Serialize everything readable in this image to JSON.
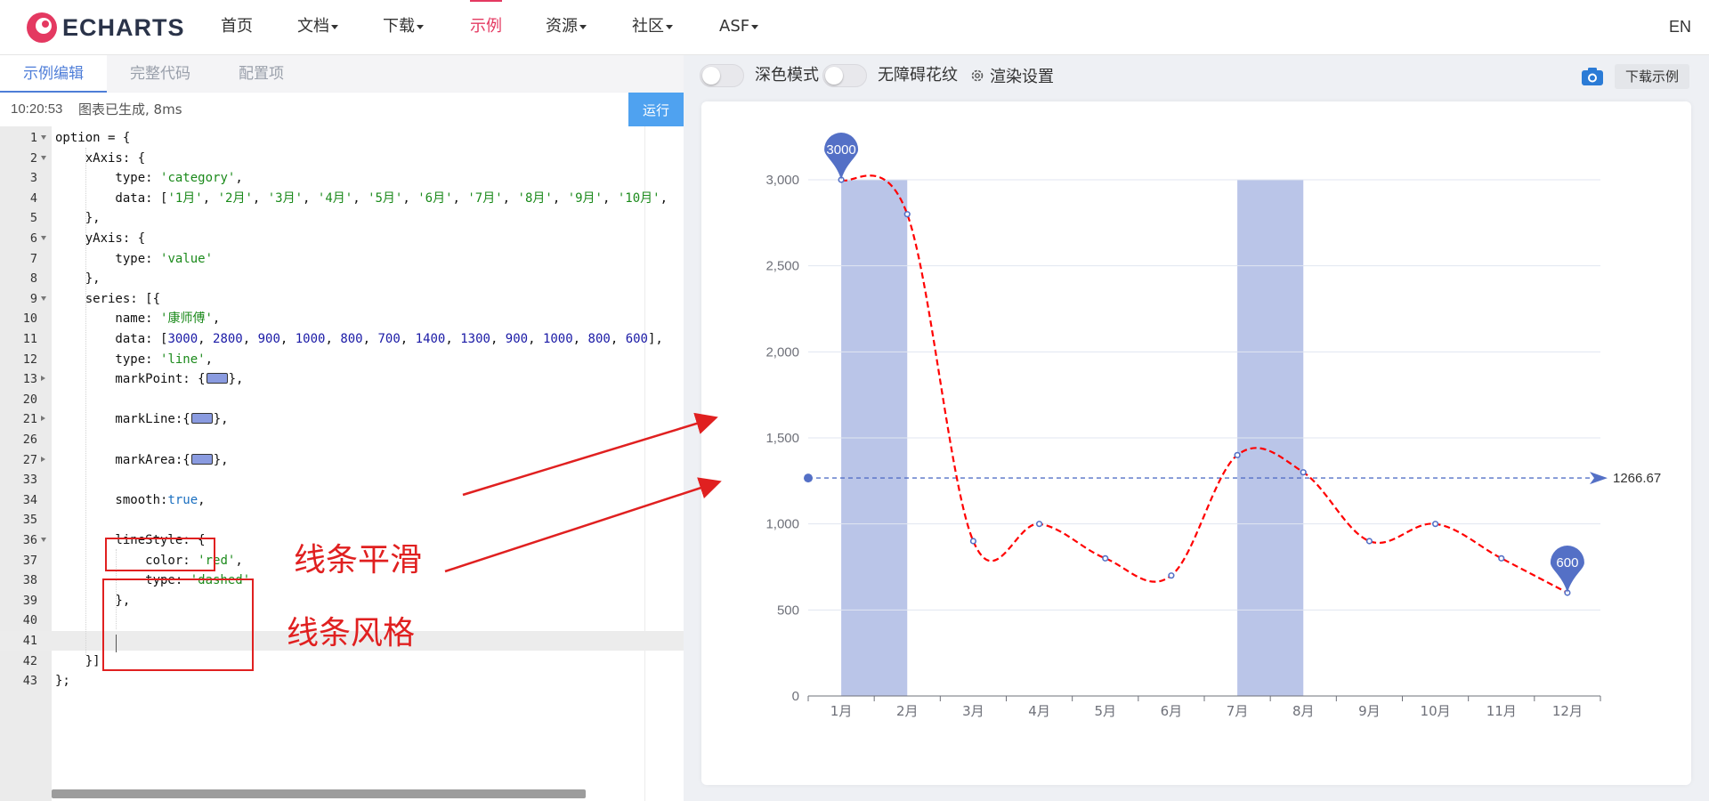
{
  "nav": {
    "logo_text": "ECHARTS",
    "items": [
      {
        "label": "首页",
        "dropdown": false,
        "active": false
      },
      {
        "label": "文档",
        "dropdown": true,
        "active": false
      },
      {
        "label": "下载",
        "dropdown": true,
        "active": false
      },
      {
        "label": "示例",
        "dropdown": false,
        "active": true
      },
      {
        "label": "资源",
        "dropdown": true,
        "active": false
      },
      {
        "label": "社区",
        "dropdown": true,
        "active": false
      },
      {
        "label": "ASF",
        "dropdown": true,
        "active": false
      }
    ],
    "lang": "EN",
    "accent_color": "#e43961"
  },
  "editor": {
    "tabs": [
      "示例编辑",
      "完整代码",
      "配置项"
    ],
    "active_tab": 0,
    "status_time": "10:20:53",
    "status_message": "图表已生成, 8ms",
    "run_label": "运行",
    "lines": [
      {
        "num": "1",
        "fold": "open",
        "text": "option = {"
      },
      {
        "num": "2",
        "fold": "open",
        "text": "    xAxis: {"
      },
      {
        "num": "3",
        "fold": "",
        "text": "        type: 'category',"
      },
      {
        "num": "4",
        "fold": "",
        "text": "        data: ['1月', '2月', '3月', '4月', '5月', '6月', '7月', '8月', '9月', '10月',"
      },
      {
        "num": "5",
        "fold": "",
        "text": "    },"
      },
      {
        "num": "6",
        "fold": "open",
        "text": "    yAxis: {"
      },
      {
        "num": "7",
        "fold": "",
        "text": "        type: 'value'"
      },
      {
        "num": "8",
        "fold": "",
        "text": "    },"
      },
      {
        "num": "9",
        "fold": "open",
        "text": "    series: [{"
      },
      {
        "num": "10",
        "fold": "",
        "text": "        name: '康师傅',"
      },
      {
        "num": "11",
        "fold": "",
        "text": "        data: [3000, 2800, 900, 1000, 800, 700, 1400, 1300, 900, 1000, 800, 600],"
      },
      {
        "num": "12",
        "fold": "",
        "text": "        type: 'line',"
      },
      {
        "num": "13",
        "fold": "closed",
        "text": "        markPoint: {▢},"
      },
      {
        "num": "20",
        "fold": "",
        "text": ""
      },
      {
        "num": "21",
        "fold": "closed",
        "text": "        markLine:{▢},"
      },
      {
        "num": "26",
        "fold": "",
        "text": ""
      },
      {
        "num": "27",
        "fold": "closed",
        "text": "        markArea:{▢},"
      },
      {
        "num": "33",
        "fold": "",
        "text": ""
      },
      {
        "num": "34",
        "fold": "",
        "text": "        smooth:true,"
      },
      {
        "num": "35",
        "fold": "",
        "text": ""
      },
      {
        "num": "36",
        "fold": "open",
        "text": "        lineStyle: {"
      },
      {
        "num": "37",
        "fold": "",
        "text": "            color: 'red',"
      },
      {
        "num": "38",
        "fold": "",
        "text": "            type: 'dashed'"
      },
      {
        "num": "39",
        "fold": "",
        "text": "        },"
      },
      {
        "num": "40",
        "fold": "",
        "text": ""
      },
      {
        "num": "41",
        "fold": "",
        "text": "",
        "current": true
      },
      {
        "num": "42",
        "fold": "",
        "text": "    }]"
      },
      {
        "num": "43",
        "fold": "",
        "text": "};"
      }
    ]
  },
  "annotations": {
    "smooth_label": "线条平滑",
    "linestyle_label": "线条风格",
    "color": "#e02020"
  },
  "toolbar": {
    "dark_mode_label": "深色模式",
    "aria_label": "无障碍花纹",
    "render_settings_label": "渲染设置",
    "download_label": "下载示例",
    "camera_icon": "camera-icon",
    "gear_icon": "gear-icon"
  },
  "chart_data": {
    "type": "line",
    "categories": [
      "1月",
      "2月",
      "3月",
      "4月",
      "5月",
      "6月",
      "7月",
      "8月",
      "9月",
      "10月",
      "11月",
      "12月"
    ],
    "series": [
      {
        "name": "康师傅",
        "values": [
          3000,
          2800,
          900,
          1000,
          800,
          700,
          1400,
          1300,
          900,
          1000,
          800,
          600
        ],
        "smooth": true,
        "line_color": "#ff0000",
        "line_type": "dashed",
        "point_color": "#5470c6"
      }
    ],
    "ylim": [
      0,
      3000
    ],
    "yticks": [
      "0",
      "500",
      "1,000",
      "1,500",
      "2,000",
      "2,500",
      "3,000"
    ],
    "ytick_values": [
      0,
      500,
      1000,
      1500,
      2000,
      2500,
      3000
    ],
    "mark_points": [
      {
        "label": "3000",
        "category_index": 0,
        "value": 3000
      },
      {
        "label": "600",
        "category_index": 11,
        "value": 600
      }
    ],
    "mark_line": {
      "value": 1266.67,
      "label": "1266.67"
    },
    "mark_areas": [
      {
        "from_index": 0,
        "to_index": 1
      },
      {
        "from_index": 6,
        "to_index": 7
      }
    ],
    "mark_color": "#5470c6",
    "area_color": "#bac5e8",
    "grid_color": "#e0e6f1",
    "legend": "none"
  }
}
